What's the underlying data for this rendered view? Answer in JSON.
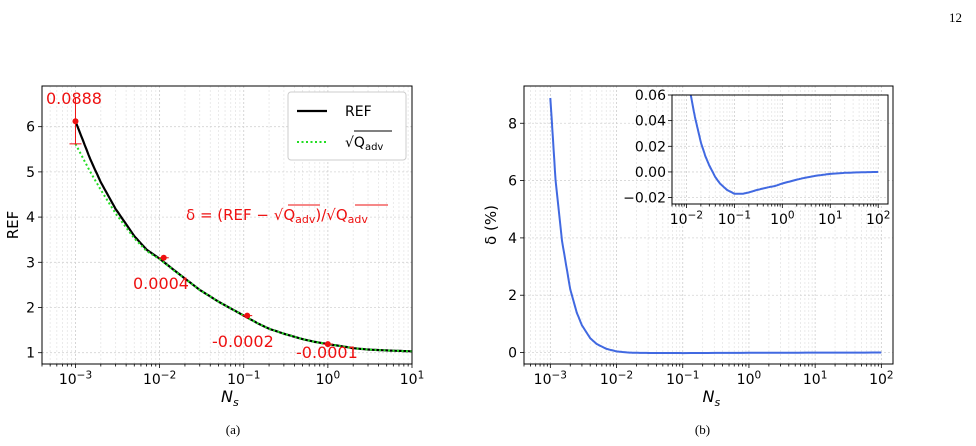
{
  "page_number": "12",
  "panel_labels": [
    "(a)",
    "(b)"
  ],
  "chart_data": [
    {
      "panel": "(a)",
      "type": "line",
      "xscale": "log",
      "xlim": [
        0.0004,
        10
      ],
      "ylim": [
        0.75,
        6.9
      ],
      "xlabel": "N_s",
      "ylabel": "REF",
      "grid": true,
      "x_ticks": [
        {
          "value": 0.001,
          "base": "10",
          "exp": "−3"
        },
        {
          "value": 0.01,
          "base": "10",
          "exp": "−2"
        },
        {
          "value": 0.1,
          "base": "10",
          "exp": "−1"
        },
        {
          "value": 1,
          "base": "10",
          "exp": "0"
        },
        {
          "value": 10,
          "base": "10",
          "exp": "1"
        }
      ],
      "y_ticks": [
        "1",
        "2",
        "3",
        "4",
        "5",
        "6"
      ],
      "legend": {
        "position": "top-right",
        "entries": [
          {
            "label": "REF",
            "color": "#000000",
            "style": "solid"
          },
          {
            "label": "√Q_adv",
            "color": "#22dd22",
            "style": "dotted"
          }
        ]
      },
      "series": [
        {
          "name": "REF",
          "color": "#000000",
          "style": "solid",
          "x": [
            0.001,
            0.0015,
            0.002,
            0.003,
            0.005,
            0.007,
            0.01,
            0.015,
            0.02,
            0.03,
            0.05,
            0.07,
            0.1,
            0.15,
            0.2,
            0.3,
            0.5,
            0.7,
            1,
            1.5,
            2,
            3,
            5,
            7,
            10
          ],
          "y": [
            6.12,
            5.28,
            4.77,
            4.18,
            3.58,
            3.28,
            3.08,
            2.82,
            2.64,
            2.39,
            2.13,
            1.98,
            1.82,
            1.64,
            1.53,
            1.42,
            1.3,
            1.24,
            1.19,
            1.14,
            1.1,
            1.07,
            1.05,
            1.04,
            1.03
          ]
        },
        {
          "name": "√Q_adv",
          "color": "#22dd22",
          "style": "dotted",
          "x": [
            0.001,
            0.0015,
            0.002,
            0.003,
            0.005,
            0.007,
            0.01,
            0.015,
            0.02,
            0.03,
            0.05,
            0.07,
            0.1,
            0.15,
            0.2,
            0.3,
            0.5,
            0.7,
            1,
            1.5,
            2,
            3,
            5,
            7,
            10
          ],
          "y": [
            5.62,
            5.0,
            4.6,
            4.08,
            3.53,
            3.25,
            3.07,
            2.81,
            2.64,
            2.39,
            2.13,
            1.98,
            1.82,
            1.64,
            1.53,
            1.42,
            1.3,
            1.24,
            1.19,
            1.14,
            1.1,
            1.07,
            1.05,
            1.04,
            1.03
          ]
        }
      ],
      "markers": [
        {
          "x": 0.001,
          "y_top": 6.12,
          "y_bottom": 5.62,
          "label": "0.0888"
        },
        {
          "x": 0.0112,
          "y": 3.1,
          "label": "0.0004"
        },
        {
          "x": 0.11,
          "y": 1.82,
          "label": "-0.0002"
        },
        {
          "x": 1.0,
          "y": 1.19,
          "label": "-0.0001"
        }
      ],
      "annotation": "δ = (REF − √Q_adv)/√Q_adv",
      "annotation_color": "#ee1111"
    },
    {
      "panel": "(b)",
      "type": "line",
      "xscale": "log",
      "xlim": [
        0.0004,
        150
      ],
      "ylim": [
        -0.4,
        9.3
      ],
      "xlabel": "N_s",
      "ylabel": "δ (%)",
      "grid": true,
      "x_ticks": [
        {
          "value": 0.001,
          "base": "10",
          "exp": "−3"
        },
        {
          "value": 0.01,
          "base": "10",
          "exp": "−2"
        },
        {
          "value": 0.1,
          "base": "10",
          "exp": "−1"
        },
        {
          "value": 1,
          "base": "10",
          "exp": "0"
        },
        {
          "value": 10,
          "base": "10",
          "exp": "1"
        },
        {
          "value": 100,
          "base": "10",
          "exp": "2"
        }
      ],
      "y_ticks": [
        "0",
        "2",
        "4",
        "6",
        "8"
      ],
      "series": [
        {
          "name": "δ",
          "color": "#4169e1",
          "x": [
            0.001,
            0.0012,
            0.0015,
            0.002,
            0.0025,
            0.003,
            0.004,
            0.005,
            0.007,
            0.01,
            0.015,
            0.02,
            0.03,
            0.05,
            0.1,
            1,
            10,
            100
          ],
          "y": [
            8.88,
            6.0,
            3.9,
            2.2,
            1.4,
            0.95,
            0.5,
            0.3,
            0.13,
            0.04,
            0.0,
            -0.01,
            -0.015,
            -0.017,
            -0.018,
            -0.01,
            -0.003,
            0.0
          ]
        }
      ],
      "inset": {
        "xlim": [
          0.005,
          160
        ],
        "ylim": [
          -0.025,
          0.06
        ],
        "x_ticks": [
          {
            "value": 0.01,
            "base": "10",
            "exp": "−2"
          },
          {
            "value": 0.1,
            "base": "10",
            "exp": "−1"
          },
          {
            "value": 1,
            "base": "10",
            "exp": "0"
          },
          {
            "value": 10,
            "base": "10",
            "exp": "1"
          },
          {
            "value": 100,
            "base": "10",
            "exp": "2"
          }
        ],
        "y_ticks": [
          "0.06",
          "0.04",
          "0.02",
          "0.00",
          "−0.02"
        ],
        "series": {
          "x": [
            0.0123,
            0.015,
            0.02,
            0.025,
            0.03,
            0.04,
            0.05,
            0.07,
            0.1,
            0.15,
            0.2,
            0.3,
            0.5,
            0.7,
            1,
            2,
            3,
            5,
            10,
            20,
            50,
            100
          ],
          "y": [
            0.06,
            0.043,
            0.023,
            0.012,
            0.005,
            -0.004,
            -0.009,
            -0.014,
            -0.017,
            -0.017,
            -0.016,
            -0.014,
            -0.012,
            -0.011,
            -0.009,
            -0.006,
            -0.0045,
            -0.003,
            -0.0015,
            -0.0007,
            -0.0002,
            0.0
          ]
        }
      }
    }
  ]
}
